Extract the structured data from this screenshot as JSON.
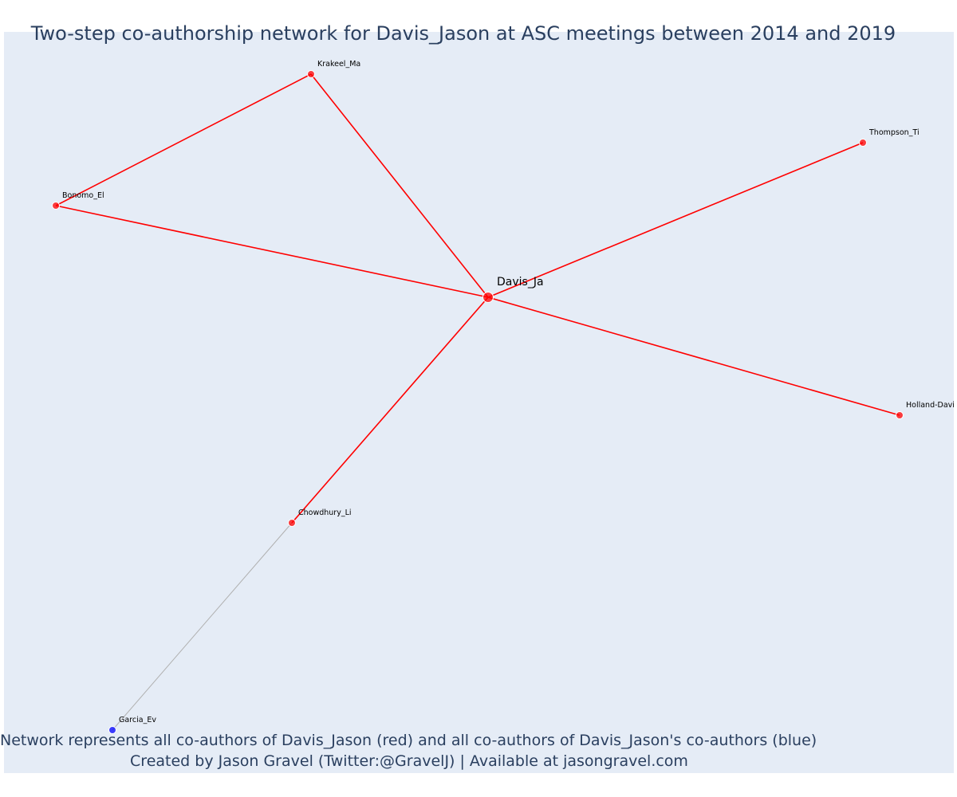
{
  "title": "Two-step co-authorship network for Davis_Jason at ASC meetings between 2014 and 2019",
  "caption": {
    "line1": "Network represents all co-authors of Davis_Jason (red) and all co-authors of Davis_Jason's co-authors (blue)",
    "line2": "Created by Jason Gravel (Twitter:@GravelJ) | Available at jasongravel.com"
  },
  "colors": {
    "background": "#e5ecf6",
    "first_step": "#ff0000",
    "second_step": "#0000ff",
    "second_step_edge": "#b0b0b0",
    "text": "#2a3f5f"
  },
  "network": {
    "nodes": [
      {
        "id": "davis",
        "label": "Davis_Ja",
        "group": "ego"
      },
      {
        "id": "krakeel",
        "label": "Krakeel_Ma",
        "group": "first_step"
      },
      {
        "id": "thompson",
        "label": "Thompson_Ti",
        "group": "first_step"
      },
      {
        "id": "bonomo",
        "label": "Bonomo_El",
        "group": "first_step"
      },
      {
        "id": "holland",
        "label": "Holland-Davis_Li",
        "group": "first_step"
      },
      {
        "id": "chowdhury",
        "label": "Chowdhury_Li",
        "group": "first_step"
      },
      {
        "id": "garcia",
        "label": "Garcia_Ev",
        "group": "second_step"
      }
    ],
    "edges": [
      {
        "source": "davis",
        "target": "krakeel",
        "group": "first_step"
      },
      {
        "source": "davis",
        "target": "thompson",
        "group": "first_step"
      },
      {
        "source": "davis",
        "target": "bonomo",
        "group": "first_step"
      },
      {
        "source": "davis",
        "target": "holland",
        "group": "first_step"
      },
      {
        "source": "davis",
        "target": "chowdhury",
        "group": "first_step"
      },
      {
        "source": "bonomo",
        "target": "krakeel",
        "group": "first_step"
      },
      {
        "source": "chowdhury",
        "target": "garcia",
        "group": "second_step"
      }
    ]
  }
}
